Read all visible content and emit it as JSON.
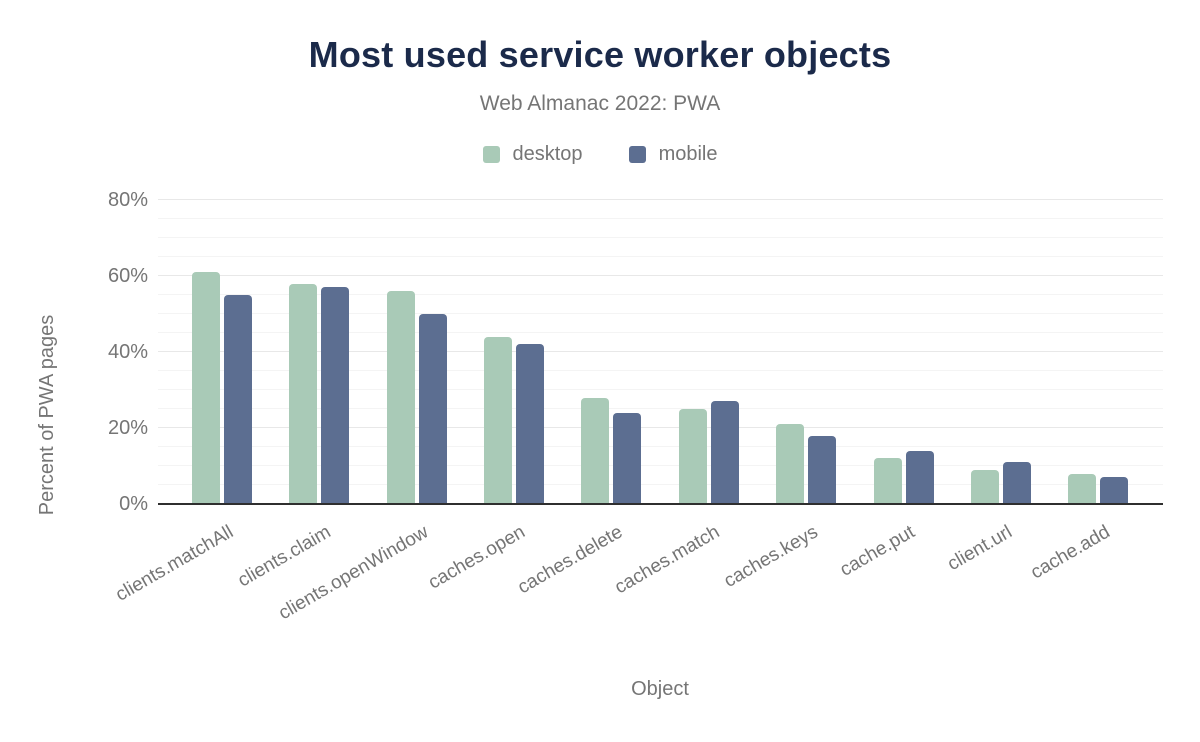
{
  "title": "Most used service worker objects",
  "subtitle": "Web Almanac 2022: PWA",
  "legend": [
    {
      "label": "desktop",
      "color": "#a9cab7"
    },
    {
      "label": "mobile",
      "color": "#5c6e91"
    }
  ],
  "chart_data": {
    "type": "bar",
    "title": "Most used service worker objects",
    "subtitle": "Web Almanac 2022: PWA",
    "categories": [
      "clients.matchAll",
      "clients.claim",
      "clients.openWindow",
      "caches.open",
      "caches.delete",
      "caches.match",
      "caches.keys",
      "cache.put",
      "client.url",
      "cache.add"
    ],
    "series": [
      {
        "name": "desktop",
        "color": "#a9cab7",
        "values": [
          61,
          58,
          56,
          44,
          28,
          25,
          21,
          12,
          9,
          8
        ]
      },
      {
        "name": "mobile",
        "color": "#5c6e91",
        "values": [
          55,
          57,
          50,
          42,
          24,
          27,
          18,
          14,
          11,
          7
        ]
      }
    ],
    "xlabel": "Object",
    "ylabel": "Percent of PWA pages",
    "ylim": [
      0,
      80
    ],
    "ytick_labels": [
      "0%",
      "20%",
      "40%",
      "60%",
      "80%"
    ],
    "ytick_major_step": 20,
    "ytick_minor_step": 5,
    "grid": "on",
    "legend_position": "top"
  },
  "colors": {
    "title": "#1b2a4a",
    "muted_text": "#757575",
    "grid_minor": "#f4f4f4",
    "grid_major": "#e8e8e8",
    "axis_line": "#2f2f2f",
    "background": "#ffffff"
  }
}
